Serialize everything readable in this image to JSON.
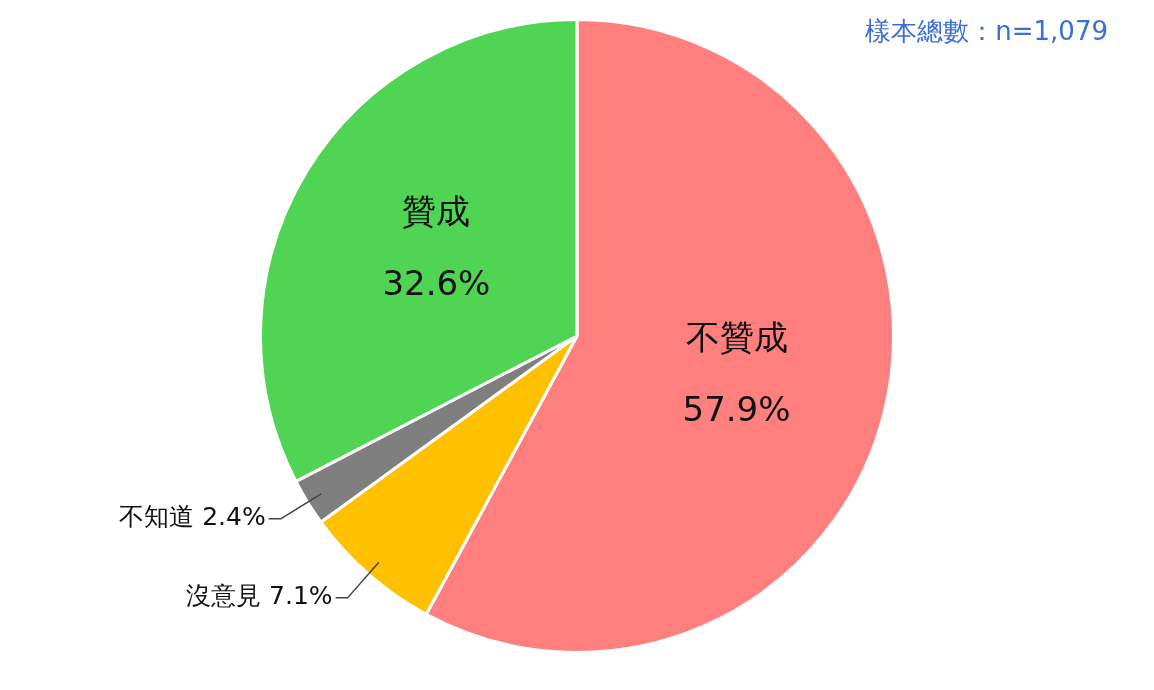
{
  "chart_data": {
    "type": "pie",
    "categories": [
      "不贊成",
      "沒意見",
      "不知道",
      "贊成"
    ],
    "values": [
      57.9,
      7.1,
      2.4,
      32.6
    ],
    "value_labels": [
      "57.9%",
      "7.1%",
      "2.4%",
      "32.6%"
    ],
    "colors": [
      "#ff7f7f",
      "#ffc000",
      "#7f7f7f",
      "#4fd454"
    ],
    "annotations": [
      "樣本總數：n=1,079"
    ],
    "legend": false
  }
}
